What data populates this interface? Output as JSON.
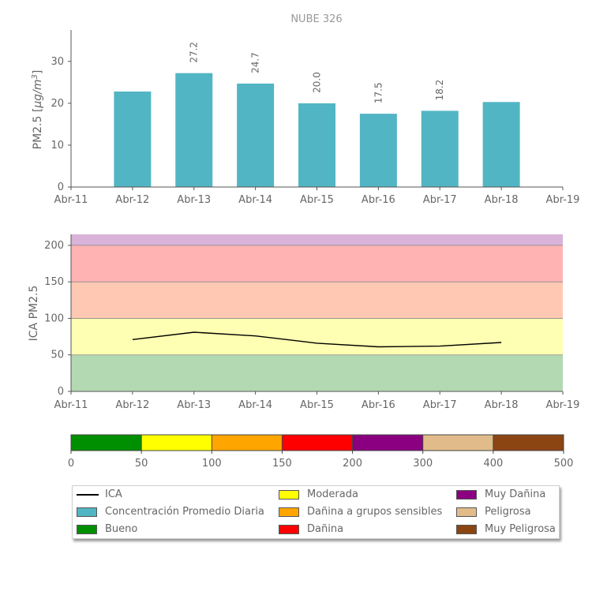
{
  "chart_data": [
    {
      "type": "bar",
      "title": "NUBE 326",
      "ylabel": "PM2.5 [μg/m³]",
      "ylabel_main": "PM2.5 [",
      "ylabel_unit": "μg/m",
      "ylabel_exp": "3",
      "ylabel_close": "]",
      "xticks": [
        "Abr-11",
        "Abr-12",
        "Abr-13",
        "Abr-14",
        "Abr-15",
        "Abr-16",
        "Abr-17",
        "Abr-18",
        "Abr-19"
      ],
      "categories": [
        "Abr-12",
        "Abr-13",
        "Abr-14",
        "Abr-15",
        "Abr-16",
        "Abr-17",
        "Abr-18"
      ],
      "values": [
        22.8,
        27.2,
        24.7,
        20.0,
        17.5,
        18.2,
        20.3
      ],
      "data_labels": [
        "",
        "27.2",
        "24.7",
        "20.0",
        "17.5",
        "18.2",
        ""
      ],
      "yticks": [
        0,
        10,
        20,
        30
      ],
      "ylim": [
        0,
        37.5
      ],
      "bar_color": "#52b5c4"
    },
    {
      "type": "line",
      "ylabel": "ICA PM2.5",
      "xticks": [
        "Abr-11",
        "Abr-12",
        "Abr-13",
        "Abr-14",
        "Abr-15",
        "Abr-16",
        "Abr-17",
        "Abr-18",
        "Abr-19"
      ],
      "categories": [
        "Abr-12",
        "Abr-13",
        "Abr-14",
        "Abr-15",
        "Abr-16",
        "Abr-17",
        "Abr-18"
      ],
      "values": [
        71,
        81,
        76,
        66,
        61,
        62,
        67
      ],
      "yticks": [
        0,
        50,
        100,
        150,
        200
      ],
      "ylim": [
        0,
        215
      ],
      "line_color": "#000000",
      "bands": [
        {
          "from": 0,
          "to": 50,
          "color": "#b3d9b3"
        },
        {
          "from": 50,
          "to": 100,
          "color": "#ffffb3"
        },
        {
          "from": 100,
          "to": 150,
          "color": "#ffc8b3"
        },
        {
          "from": 150,
          "to": 200,
          "color": "#ffb3b3"
        },
        {
          "from": 200,
          "to": 215,
          "color": "#d9b3d9"
        }
      ]
    },
    {
      "type": "colorbar",
      "ticks": [
        "0",
        "50",
        "100",
        "150",
        "200",
        "300",
        "400",
        "500"
      ],
      "colors": [
        "#008f00",
        "#ffff00",
        "#ffa500",
        "#ff0000",
        "#8b0080",
        "#e1bc8a",
        "#8b4513"
      ]
    }
  ],
  "legend": {
    "items": [
      {
        "label": "ICA",
        "kind": "line",
        "color": "#000000"
      },
      {
        "label": "Concentración Promedio Diaria",
        "kind": "box",
        "color": "#52b5c4"
      },
      {
        "label": "Bueno",
        "kind": "box",
        "color": "#008f00"
      },
      {
        "label": "Moderada",
        "kind": "box",
        "color": "#ffff00"
      },
      {
        "label": "Dañina a grupos sensibles",
        "kind": "box",
        "color": "#ffa500"
      },
      {
        "label": "Dañina",
        "kind": "box",
        "color": "#ff0000"
      },
      {
        "label": "Muy Dañina",
        "kind": "box",
        "color": "#8b0080"
      },
      {
        "label": "Peligrosa",
        "kind": "box",
        "color": "#e1bc8a"
      },
      {
        "label": "Muy Peligrosa",
        "kind": "box",
        "color": "#8b4513"
      }
    ]
  }
}
